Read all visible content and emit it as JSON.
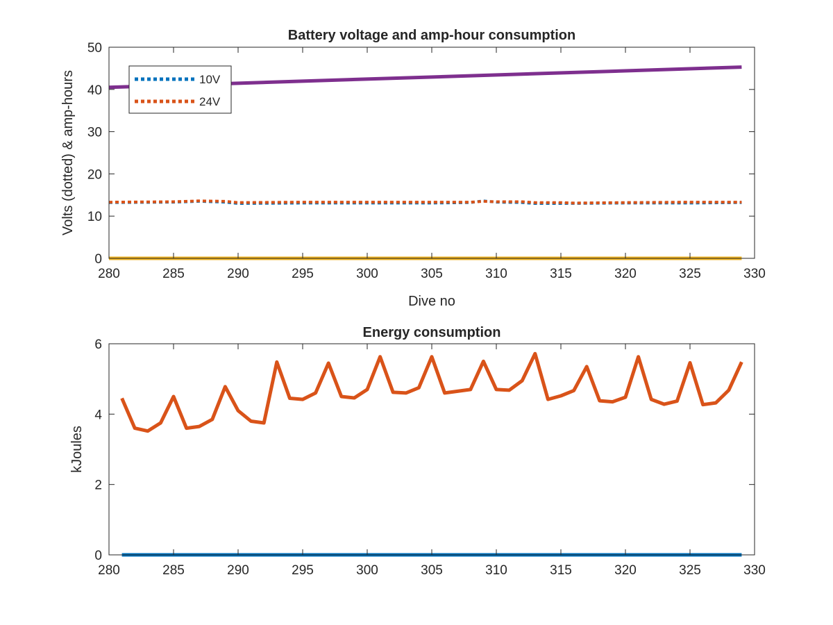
{
  "chart_data": [
    {
      "type": "line",
      "title": "Battery voltage and amp-hour consumption",
      "xlabel": "Dive no",
      "ylabel": "Volts (dotted) & amp-hours",
      "xlim": [
        280,
        330
      ],
      "ylim": [
        0,
        50
      ],
      "xticks": [
        "280",
        "285",
        "290",
        "295",
        "300",
        "305",
        "310",
        "315",
        "320",
        "325",
        "330"
      ],
      "yticks": [
        "0",
        "10",
        "20",
        "30",
        "40",
        "50"
      ],
      "legend_position": "top-left",
      "grid": false,
      "series": [
        {
          "name": "10V",
          "style": "dotted",
          "color": "#0072BD",
          "x": [
            280,
            285,
            287,
            289,
            290,
            295,
            300,
            305,
            308,
            309,
            310,
            312,
            313,
            315,
            320,
            325,
            329
          ],
          "y": [
            13.2,
            13.3,
            13.5,
            13.3,
            13.0,
            13.1,
            13.1,
            13.1,
            13.2,
            13.6,
            13.3,
            13.2,
            13.0,
            13.0,
            13.1,
            13.1,
            13.2
          ]
        },
        {
          "name": "24V",
          "style": "dotted",
          "color": "#D95319",
          "x": [
            280,
            285,
            287,
            289,
            290,
            295,
            300,
            305,
            308,
            309,
            310,
            312,
            313,
            315,
            316,
            320,
            325,
            329
          ],
          "y": [
            13.3,
            13.4,
            13.6,
            13.5,
            13.2,
            13.3,
            13.3,
            13.3,
            13.3,
            13.5,
            13.4,
            13.4,
            13.2,
            13.2,
            13.1,
            13.2,
            13.3,
            13.3
          ]
        },
        {
          "style": "solid",
          "color": "#7E2F8E",
          "x": [
            280,
            329
          ],
          "y": [
            40.5,
            45.3
          ]
        },
        {
          "style": "solid",
          "color": "#EDB120",
          "x": [
            280,
            329
          ],
          "y": [
            0,
            0
          ]
        }
      ]
    },
    {
      "type": "line",
      "title": "Energy consumption",
      "xlabel": "",
      "ylabel": "kJoules",
      "xlim": [
        280,
        330
      ],
      "ylim": [
        0,
        6
      ],
      "xticks": [
        "280",
        "285",
        "290",
        "295",
        "300",
        "305",
        "310",
        "315",
        "320",
        "325",
        "330"
      ],
      "yticks": [
        "0",
        "2",
        "4",
        "6"
      ],
      "grid": false,
      "series": [
        {
          "style": "solid",
          "color": "#D95319",
          "x": [
            281,
            282,
            283,
            284,
            285,
            286,
            287,
            288,
            289,
            290,
            291,
            292,
            293,
            294,
            295,
            296,
            297,
            298,
            299,
            300,
            301,
            302,
            303,
            304,
            305,
            306,
            307,
            308,
            309,
            310,
            311,
            312,
            313,
            314,
            315,
            316,
            317,
            318,
            319,
            320,
            321,
            322,
            323,
            324,
            325,
            326,
            327,
            328,
            329
          ],
          "y": [
            4.45,
            3.6,
            3.52,
            3.75,
            4.5,
            3.6,
            3.65,
            3.85,
            4.78,
            4.1,
            3.8,
            3.75,
            5.48,
            4.45,
            4.42,
            4.6,
            5.45,
            4.5,
            4.46,
            4.7,
            5.63,
            4.62,
            4.6,
            4.75,
            5.63,
            4.6,
            4.65,
            4.7,
            5.5,
            4.7,
            4.68,
            4.95,
            5.72,
            4.42,
            4.52,
            4.67,
            5.35,
            4.38,
            4.35,
            4.48,
            5.63,
            4.42,
            4.28,
            4.37,
            5.46,
            4.27,
            4.32,
            4.68,
            5.48
          ]
        },
        {
          "style": "solid",
          "color": "#0072BD",
          "x": [
            281,
            329
          ],
          "y": [
            0,
            0
          ]
        }
      ]
    }
  ]
}
